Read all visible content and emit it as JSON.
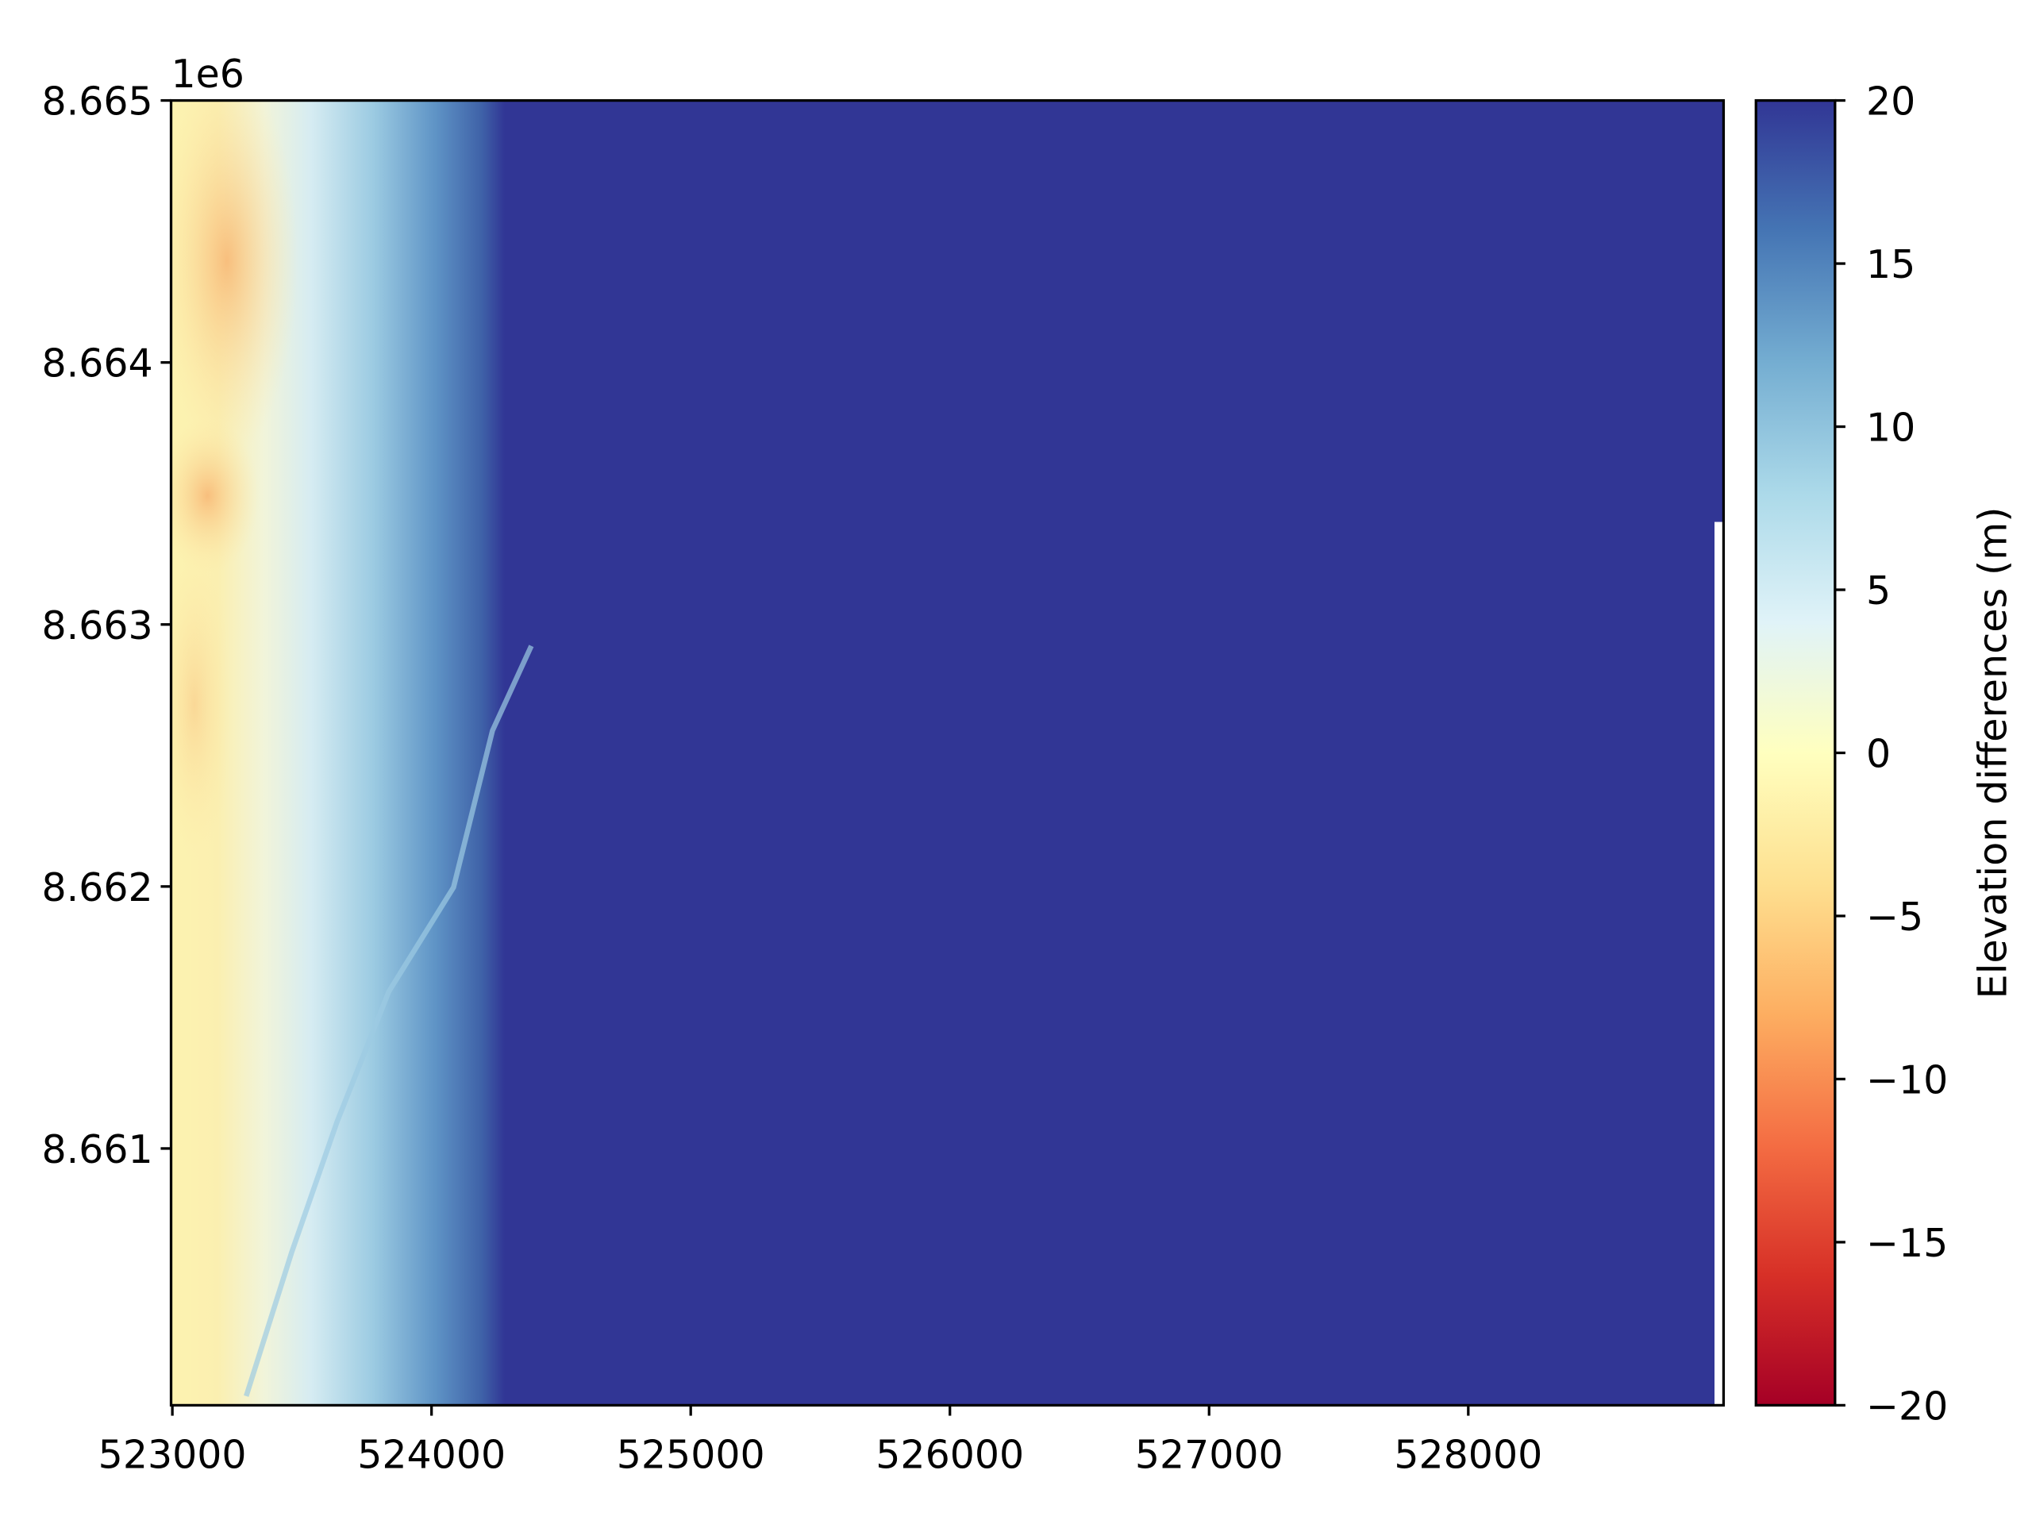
{
  "chart_data": {
    "type": "raster",
    "offset_text": "1e6",
    "xlim": [
      522995,
      528985
    ],
    "ylim": [
      8.66002,
      8.665
    ],
    "xticks": [
      523000,
      524000,
      525000,
      526000,
      527000,
      528000
    ],
    "yticks": [
      8.661,
      8.662,
      8.663,
      8.664,
      8.665
    ],
    "colorbar": {
      "label": "Elevation differences (m)",
      "clim": [
        -20,
        20
      ],
      "cmap": [
        "#a50026",
        "#d73027",
        "#f46d43",
        "#fdae61",
        "#fee090",
        "#ffffbf",
        "#e0f3f8",
        "#abd9e9",
        "#74add1",
        "#4575b4",
        "#313695"
      ],
      "ticks": [
        {
          "value": -20,
          "label": "−20"
        },
        {
          "value": -15,
          "label": "−15"
        },
        {
          "value": -10,
          "label": "−10"
        },
        {
          "value": -5,
          "label": "−5"
        },
        0,
        5,
        10,
        15,
        20
      ]
    }
  }
}
